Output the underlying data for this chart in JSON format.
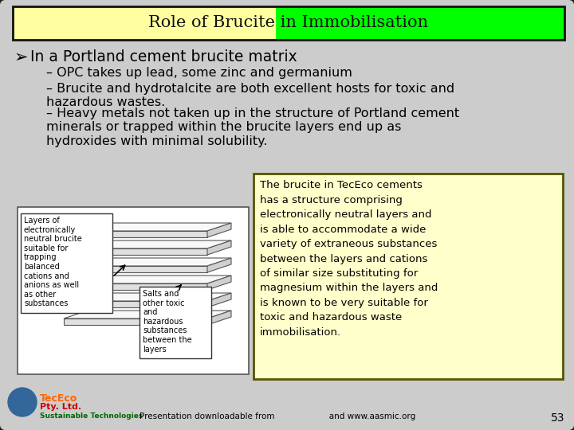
{
  "title": "Role of Brucite in Immobilisation",
  "title_bg_left": "#ffffa0",
  "title_bg_right": "#00ff00",
  "slide_bg": "#c0c0c0",
  "slide_inner_bg": "#cccccc",
  "main_bullet": "In a Portland cement brucite matrix",
  "sub_bullets": [
    "OPC takes up lead, some zinc and germanium",
    "Brucite and hydrotalcite are both excellent hosts for toxic and\nhazardous wastes.",
    "Heavy metals not taken up in the structure of Portland cement\nminerals or trapped within the brucite layers end up as\nhydroxides with minimal solubility."
  ],
  "note_text": "The brucite in TecEco cements\nhas a structure comprising\nelectronically neutral layers and\nis able to accommodate a wide\nvariety of extraneous substances\nbetween the layers and cations\nof similar size substituting for\nmagnesium within the layers and\nis known to be very suitable for\ntoxic and hazardous waste\nimmobilisation.",
  "note_bg": "#ffffcc",
  "footer_text": "Presentation downloadable from                     and www.aasmic.org",
  "page_num": "53",
  "diagram_label_left": "Layers of\nelectronically\nneutral brucite\nsuitable for\ntrapping\nbalanced\ncations and\nanions as well\nas other\nsubstances",
  "diagram_label_right": "Salts and\nother toxic\nand\nhazardous\nsubstances\nbetween the\nlayers"
}
